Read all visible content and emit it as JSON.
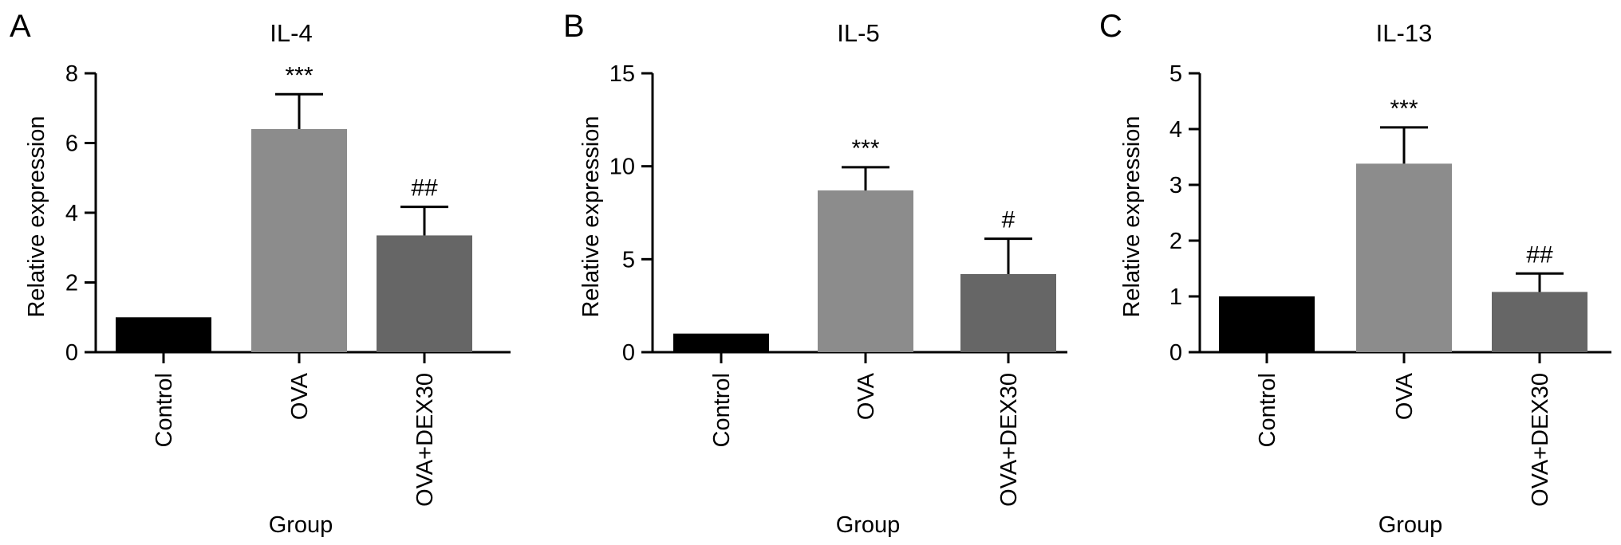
{
  "chart_data": [
    {
      "panel": "A",
      "type": "bar",
      "title": "IL-4",
      "xlabel": "Group",
      "ylabel": "Relative expression",
      "ylim": [
        0,
        8
      ],
      "yticks": [
        0,
        2,
        4,
        6,
        8
      ],
      "categories": [
        "Control",
        "OVA",
        "OVA+DEX30"
      ],
      "values": [
        1.0,
        6.4,
        3.35
      ],
      "errors": [
        0,
        1.0,
        0.82
      ],
      "annotations": [
        "",
        "***",
        "##"
      ],
      "colors": [
        "#000000",
        "#8c8c8c",
        "#666666"
      ]
    },
    {
      "panel": "B",
      "type": "bar",
      "title": "IL-5",
      "xlabel": "Group",
      "ylabel": "Relative expression",
      "ylim": [
        0,
        15
      ],
      "yticks": [
        0,
        5,
        10,
        15
      ],
      "categories": [
        "Control",
        "OVA",
        "OVA+DEX30"
      ],
      "values": [
        1.0,
        8.7,
        4.2
      ],
      "errors": [
        0,
        1.25,
        1.9
      ],
      "annotations": [
        "",
        "***",
        "#"
      ],
      "colors": [
        "#000000",
        "#8c8c8c",
        "#666666"
      ]
    },
    {
      "panel": "C",
      "type": "bar",
      "title": "IL-13",
      "xlabel": "Group",
      "ylabel": "Relative expression",
      "ylim": [
        0,
        5
      ],
      "yticks": [
        0,
        1,
        2,
        3,
        4,
        5
      ],
      "categories": [
        "Control",
        "OVA",
        "OVA+DEX30"
      ],
      "values": [
        1.0,
        3.38,
        1.08
      ],
      "errors": [
        0,
        0.65,
        0.33
      ],
      "annotations": [
        "",
        "***",
        "##"
      ],
      "colors": [
        "#000000",
        "#8c8c8c",
        "#666666"
      ]
    }
  ]
}
